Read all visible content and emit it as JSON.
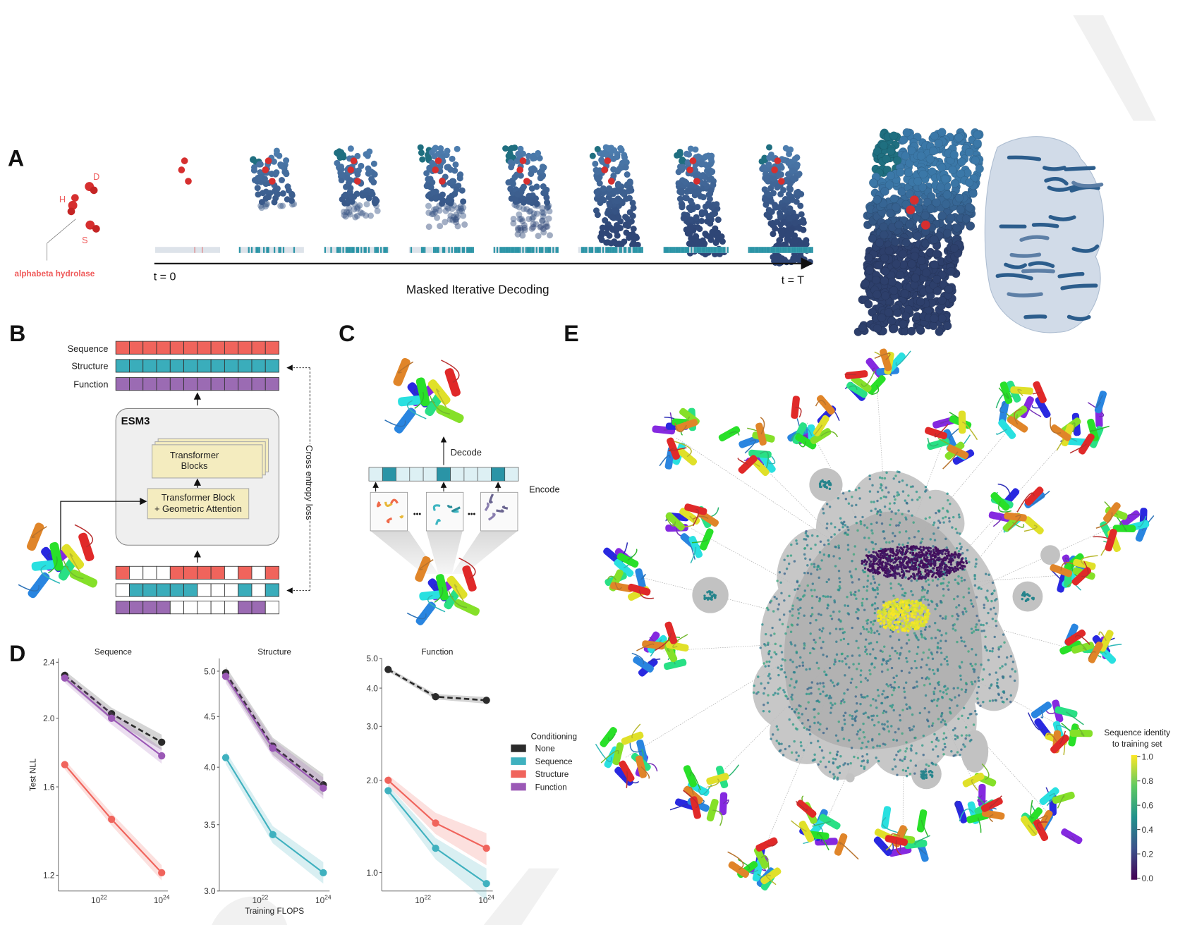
{
  "panel_labels": {
    "a": "A",
    "b": "B",
    "c": "C",
    "d": "D",
    "e": "E"
  },
  "panel_a": {
    "residue_labels": {
      "h": "H",
      "d": "D",
      "s": "S"
    },
    "motif_label": "alphabeta hydrolase",
    "t_start": "t = 0",
    "t_end": "t = T",
    "caption": "Masked Iterative Decoding",
    "unmasked_fraction": [
      0.0,
      0.3,
      0.5,
      0.6,
      0.75,
      0.8,
      0.95,
      1.0
    ],
    "colors": {
      "residue": "#d62f2f",
      "token_teal": "#2a94a6",
      "token_mask": "#dde3ea",
      "atom_light": "#4e7fb0",
      "atom_dark": "#2f4676"
    }
  },
  "panel_b": {
    "track_labels": [
      "Sequence",
      "Structure",
      "Function"
    ],
    "model_name": "ESM3",
    "transformer_blocks": [
      "Transformer",
      "Blocks"
    ],
    "geometric_block": [
      "Transformer Block",
      "+ Geometric Attention"
    ],
    "loss_label": "Cross entropy loss",
    "input_masks": {
      "sequence": [
        1,
        0,
        0,
        0,
        1,
        1,
        1,
        1,
        0,
        1,
        0,
        1
      ],
      "structure": [
        0,
        1,
        1,
        1,
        1,
        1,
        0,
        0,
        0,
        1,
        0,
        1
      ],
      "function": [
        1,
        1,
        1,
        1,
        0,
        0,
        0,
        0,
        0,
        1,
        1,
        0
      ]
    },
    "colors": {
      "sequence": "#f0645c",
      "structure": "#3aadbb",
      "function": "#9b6bb3",
      "block": "#f4ecbf"
    }
  },
  "panel_c": {
    "decode": "Decode",
    "encode": "Encode",
    "ellipsis": "•••",
    "token_pattern": [
      0,
      1,
      0,
      0,
      0,
      1,
      0,
      0,
      0,
      1,
      0
    ]
  },
  "legend": {
    "title": "Conditioning",
    "items": [
      {
        "name": "None",
        "color": "#2b2b2b"
      },
      {
        "name": "Sequence",
        "color": "#3fb1bf"
      },
      {
        "name": "Structure",
        "color": "#f0645c"
      },
      {
        "name": "Function",
        "color": "#9b59b6"
      }
    ]
  },
  "chart_data": [
    {
      "type": "line",
      "title": "Sequence",
      "xlabel": "",
      "ylabel": "Test NLL",
      "xscale": "log",
      "yscale": "log",
      "x": [
        8e+20,
        2.5e+22,
        1e+24
      ],
      "xticks": [
        {
          "value": 1e+22,
          "base": "10",
          "exp": "22"
        },
        {
          "value": 1e+24,
          "base": "10",
          "exp": "24"
        }
      ],
      "yticks": [
        {
          "value": 2.4,
          "label": "2.4"
        },
        {
          "value": 2.0,
          "label": "2.0"
        },
        {
          "value": 1.6,
          "label": "1.6"
        },
        {
          "value": 1.2,
          "label": "1.2"
        }
      ],
      "ylim": [
        1.14,
        2.43
      ],
      "series": [
        {
          "name": "None",
          "values": [
            2.3,
            2.03,
            1.85
          ],
          "dashed": true
        },
        {
          "name": "Function",
          "values": [
            2.28,
            2.0,
            1.77
          ]
        },
        {
          "name": "Structure",
          "values": [
            1.72,
            1.44,
            1.21
          ]
        }
      ]
    },
    {
      "type": "line",
      "title": "Structure",
      "xlabel": "Training FLOPS",
      "ylabel": "",
      "xscale": "log",
      "yscale": "log",
      "x": [
        8e+20,
        2.5e+22,
        1e+24
      ],
      "xticks": [
        {
          "value": 1e+22,
          "base": "10",
          "exp": "22"
        },
        {
          "value": 1e+24,
          "base": "10",
          "exp": "24"
        }
      ],
      "yticks": [
        {
          "value": 5.0,
          "label": "5.0"
        },
        {
          "value": 4.5,
          "label": "4.5"
        },
        {
          "value": 4.0,
          "label": "4.0"
        },
        {
          "value": 3.5,
          "label": "3.5"
        },
        {
          "value": 3.0,
          "label": "3.0"
        }
      ],
      "ylim": [
        3.0,
        5.15
      ],
      "series": [
        {
          "name": "None",
          "values": [
            4.98,
            4.2,
            3.84
          ],
          "dashed": true
        },
        {
          "name": "Function",
          "values": [
            4.94,
            4.18,
            3.81
          ]
        },
        {
          "name": "Sequence",
          "values": [
            4.09,
            3.42,
            3.13
          ]
        }
      ]
    },
    {
      "type": "line",
      "title": "Function",
      "xlabel": "",
      "ylabel": "",
      "xscale": "log",
      "yscale": "log",
      "x": [
        8e+20,
        2.5e+22,
        1e+24
      ],
      "xticks": [
        {
          "value": 1e+22,
          "base": "10",
          "exp": "22"
        },
        {
          "value": 1e+24,
          "base": "10",
          "exp": "24"
        }
      ],
      "yticks": [
        {
          "value": 5.0,
          "label": "5.0"
        },
        {
          "value": 4.0,
          "label": "4.0"
        },
        {
          "value": 3.0,
          "label": "3.0"
        },
        {
          "value": 2.0,
          "label": "2.0"
        },
        {
          "value": 1.0,
          "label": "1.0"
        }
      ],
      "ylim": [
        0.87,
        5.0
      ],
      "series": [
        {
          "name": "None",
          "values": [
            4.6,
            3.75,
            3.65
          ],
          "dashed": true
        },
        {
          "name": "Structure",
          "values": [
            2.0,
            1.45,
            1.2
          ]
        },
        {
          "name": "Sequence",
          "values": [
            1.85,
            1.2,
            0.92
          ]
        }
      ]
    }
  ],
  "panel_e": {
    "colorbar_title": [
      "Sequence identity",
      "to training set"
    ],
    "colorbar_ticks": [
      "1.0",
      "0.8",
      "0.6",
      "0.4",
      "0.2",
      "0.0"
    ],
    "colormap": [
      "#440154",
      "#3b528b",
      "#21918c",
      "#5ec962",
      "#fde725"
    ]
  }
}
